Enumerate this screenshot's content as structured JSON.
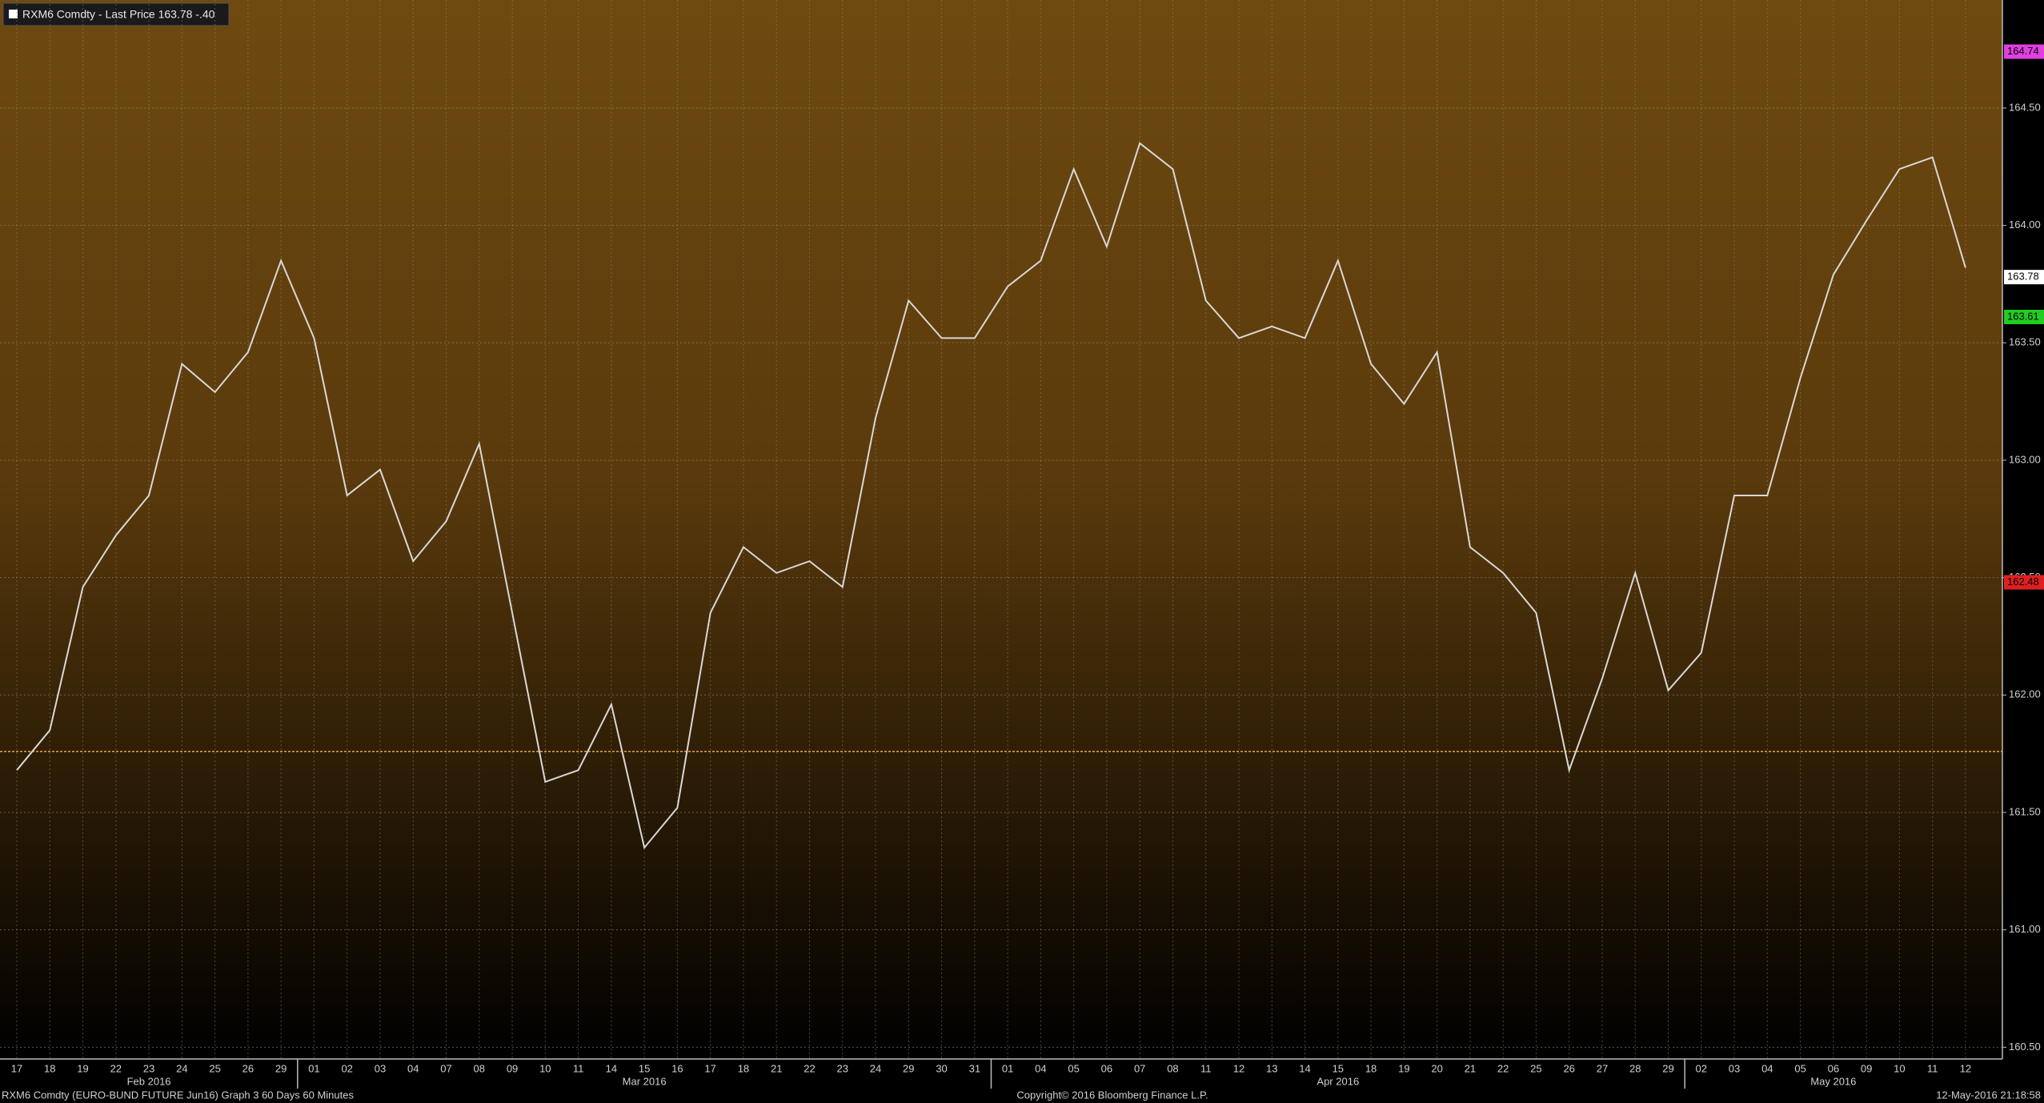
{
  "chart_data": {
    "type": "line",
    "title": "RXM6 Comdty - Last Price 163.78 -.40",
    "footer_left": "RXM6 Comdty (EURO-BUND FUTURE Jun16) Graph 3 60 Days 60 Minutes",
    "footer_center": "Copyright© 2016 Bloomberg Finance L.P.",
    "footer_right": "12-May-2016 21:18:58",
    "categories": [
      "17",
      "18",
      "19",
      "22",
      "23",
      "24",
      "25",
      "26",
      "29",
      "01",
      "02",
      "03",
      "04",
      "07",
      "08",
      "09",
      "10",
      "11",
      "14",
      "15",
      "16",
      "17",
      "18",
      "21",
      "22",
      "23",
      "24",
      "29",
      "30",
      "31",
      "01",
      "04",
      "05",
      "06",
      "07",
      "08",
      "11",
      "12",
      "13",
      "14",
      "15",
      "18",
      "19",
      "20",
      "21",
      "22",
      "25",
      "26",
      "27",
      "28",
      "29",
      "02",
      "03",
      "04",
      "05",
      "06",
      "09",
      "10",
      "11",
      "12"
    ],
    "month_labels": [
      "Feb 2016",
      "Mar 2016",
      "Apr 2016",
      "May 2016"
    ],
    "series": [
      {
        "name": "Last Price",
        "color": "#d8d8d8",
        "values": [
          161.68,
          161.85,
          162.46,
          162.68,
          162.85,
          163.41,
          163.29,
          163.46,
          163.85,
          163.52,
          162.85,
          162.96,
          162.57,
          162.74,
          163.07,
          162.35,
          161.63,
          161.68,
          161.96,
          161.35,
          161.52,
          162.35,
          162.63,
          162.52,
          162.57,
          162.46,
          163.18,
          163.68,
          163.52,
          163.52,
          163.74,
          163.85,
          164.24,
          163.91,
          164.35,
          164.24,
          163.68,
          163.52,
          163.57,
          163.52,
          163.85,
          163.41,
          163.24,
          163.46,
          162.63,
          162.52,
          162.35,
          161.68,
          162.07,
          162.52,
          162.02,
          162.18,
          162.85,
          162.85,
          163.35,
          163.79,
          164.02,
          164.24,
          164.29,
          163.82
        ]
      }
    ],
    "ylim": [
      160.45,
      164.96
    ],
    "yticks": [
      {
        "value": 160.5,
        "label": "160.50"
      },
      {
        "value": 161,
        "label": "161.00"
      },
      {
        "value": 161.5,
        "label": "161.50"
      },
      {
        "value": 162,
        "label": "162.00"
      },
      {
        "value": 162.5,
        "label": "162.50"
      },
      {
        "value": 163,
        "label": "163.00"
      },
      {
        "value": 163.5,
        "label": "163.50"
      },
      {
        "value": 164,
        "label": "164.00"
      },
      {
        "value": 164.5,
        "label": "164.50"
      }
    ],
    "price_tags": [
      {
        "value": 164.74,
        "label": "164.74",
        "color": "#e040e0"
      },
      {
        "value": 163.78,
        "label": "163.78",
        "color": "#ffffff"
      },
      {
        "value": 163.61,
        "label": "163.61",
        "color": "#22cc22"
      },
      {
        "value": 162.48,
        "label": "162.48",
        "color": "#e02020"
      }
    ],
    "reference_line": 161.76,
    "grid": true
  }
}
